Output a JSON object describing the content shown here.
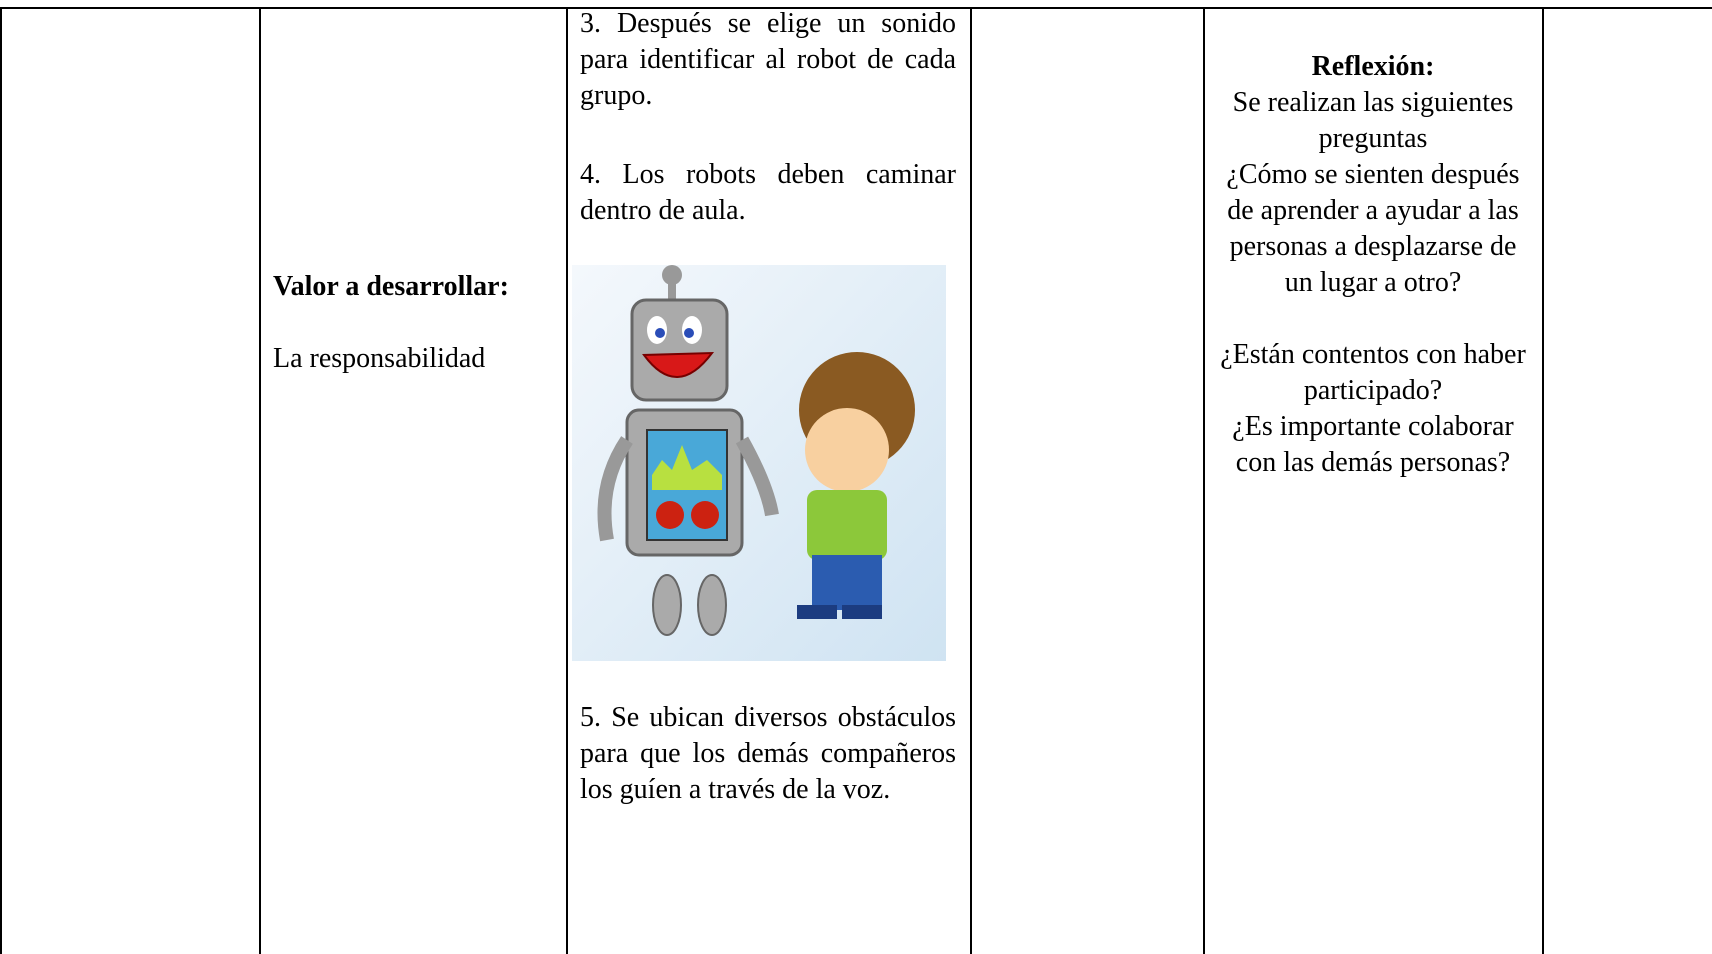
{
  "valor": {
    "title": "Valor a desarrollar:",
    "text": "La responsabilidad"
  },
  "steps": [
    "3. Después se elige un sonido para identificar al robot de cada grupo.",
    "4. Los robots deben caminar dentro de aula.",
    "5. Se ubican diversos obstáculos para que los demás compañeros los guíen a través de la voz."
  ],
  "reflexion": {
    "title": "Reflexión:",
    "lines": [
      "Se realizan las siguientes preguntas",
      "¿Cómo se sienten después de aprender a ayudar a las personas a desplazarse de un lugar a otro?",
      "¿Están contentos con haber participado?",
      "¿Es importante colaborar con las demás personas?"
    ]
  }
}
